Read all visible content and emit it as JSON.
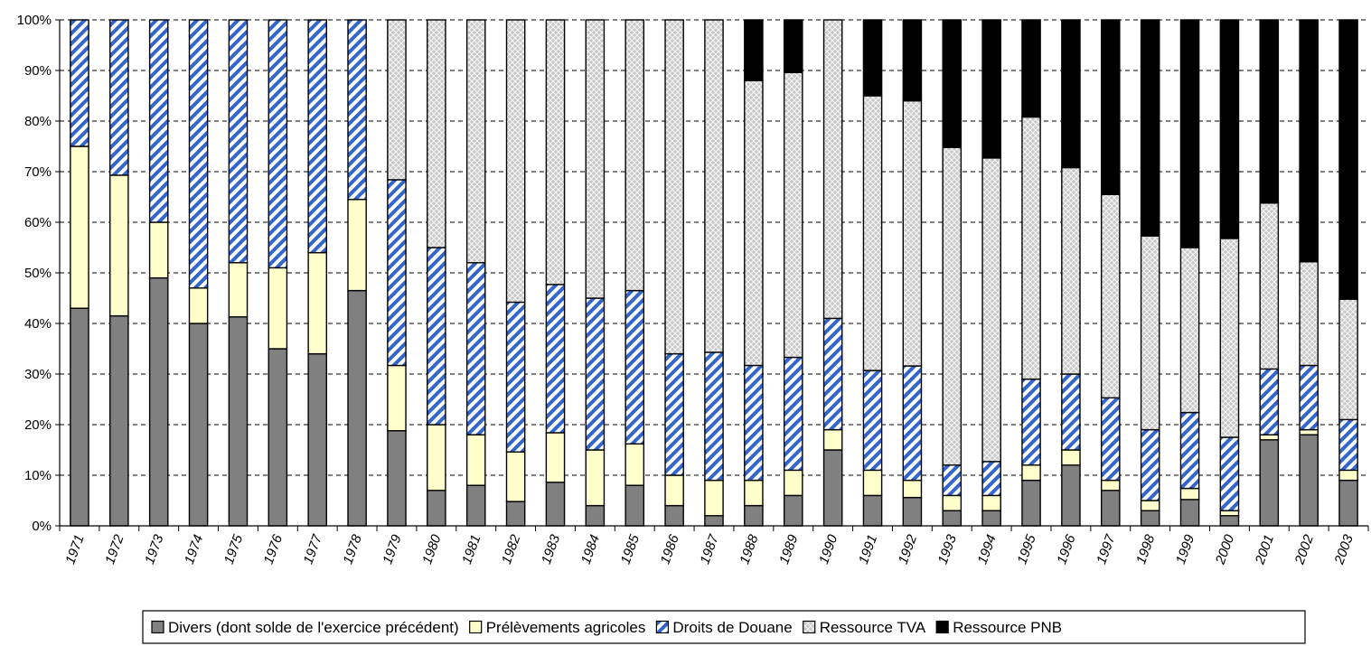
{
  "chart_data": {
    "type": "bar",
    "stacked": true,
    "normalized": true,
    "title": "",
    "xlabel": "",
    "ylabel": "",
    "ylim": [
      0,
      100
    ],
    "y_ticks": [
      "0%",
      "10%",
      "20%",
      "30%",
      "40%",
      "50%",
      "60%",
      "70%",
      "80%",
      "90%",
      "100%"
    ],
    "grid": "horizontal dashed",
    "legend_position": "bottom",
    "categories": [
      "1971",
      "1972",
      "1973",
      "1974",
      "1975",
      "1976",
      "1977",
      "1978",
      "1979",
      "1980",
      "1981",
      "1982",
      "1983",
      "1984",
      "1985",
      "1986",
      "1987",
      "1988",
      "1989",
      "1990",
      "1991",
      "1992",
      "1993",
      "1994",
      "1995",
      "1996",
      "1997",
      "1998",
      "1999",
      "2000",
      "2001",
      "2002",
      "2003"
    ],
    "series": [
      {
        "name": "Divers (dont solde de l'exercice précédent)",
        "color": "#808080",
        "pattern": "solid",
        "values": [
          43,
          41.5,
          49,
          40,
          41.3,
          35,
          34,
          46.5,
          18.8,
          7,
          8,
          4.8,
          8.6,
          4,
          8,
          4,
          2,
          4,
          6,
          15,
          6,
          5.6,
          3,
          3,
          9,
          12,
          7,
          3,
          5.2,
          2,
          17,
          18,
          9
        ]
      },
      {
        "name": "Prélèvements agricoles",
        "color": "#ffffcc",
        "pattern": "solid",
        "values": [
          32,
          27.8,
          11,
          7,
          10.7,
          16,
          20,
          18,
          12.9,
          13,
          10,
          9.8,
          9.8,
          11,
          8.2,
          6,
          7,
          5,
          5,
          4,
          5,
          3.4,
          3,
          3,
          3,
          3,
          2,
          2,
          2.2,
          1,
          1,
          1,
          2
        ]
      },
      {
        "name": "Droits de Douane",
        "color": "#3366cc",
        "pattern": "diagonal-stripes",
        "values": [
          25,
          30.7,
          40,
          53,
          48,
          49,
          46,
          35.5,
          36.7,
          35,
          34,
          29.6,
          29.3,
          30,
          30.3,
          24,
          25.3,
          22.7,
          22.3,
          22,
          19.7,
          22.6,
          6,
          6.7,
          17,
          15,
          16.3,
          14,
          15,
          14.5,
          13,
          12.7,
          10
        ]
      },
      {
        "name": "Ressource TVA",
        "color": "#c0c0c0",
        "pattern": "crosshatch",
        "values": [
          0,
          0,
          0,
          0,
          0,
          0,
          0,
          0,
          31.6,
          45,
          48,
          55.8,
          52.3,
          55,
          53.5,
          66,
          65.7,
          56.3,
          56.3,
          59,
          54.3,
          52.4,
          62.8,
          60,
          51.8,
          40.8,
          40.2,
          38.3,
          32.6,
          39.3,
          32.8,
          20.5,
          23.8
        ]
      },
      {
        "name": "Ressource PNB",
        "color": "#000000",
        "pattern": "solid",
        "values": [
          0,
          0,
          0,
          0,
          0,
          0,
          0,
          0,
          0,
          0,
          0,
          0,
          0,
          0,
          0,
          0,
          0,
          12,
          10.4,
          0,
          15,
          16,
          25.2,
          27.3,
          19.2,
          29.2,
          34.5,
          42.7,
          45,
          43.2,
          36.2,
          47.8,
          55.2
        ]
      }
    ]
  }
}
